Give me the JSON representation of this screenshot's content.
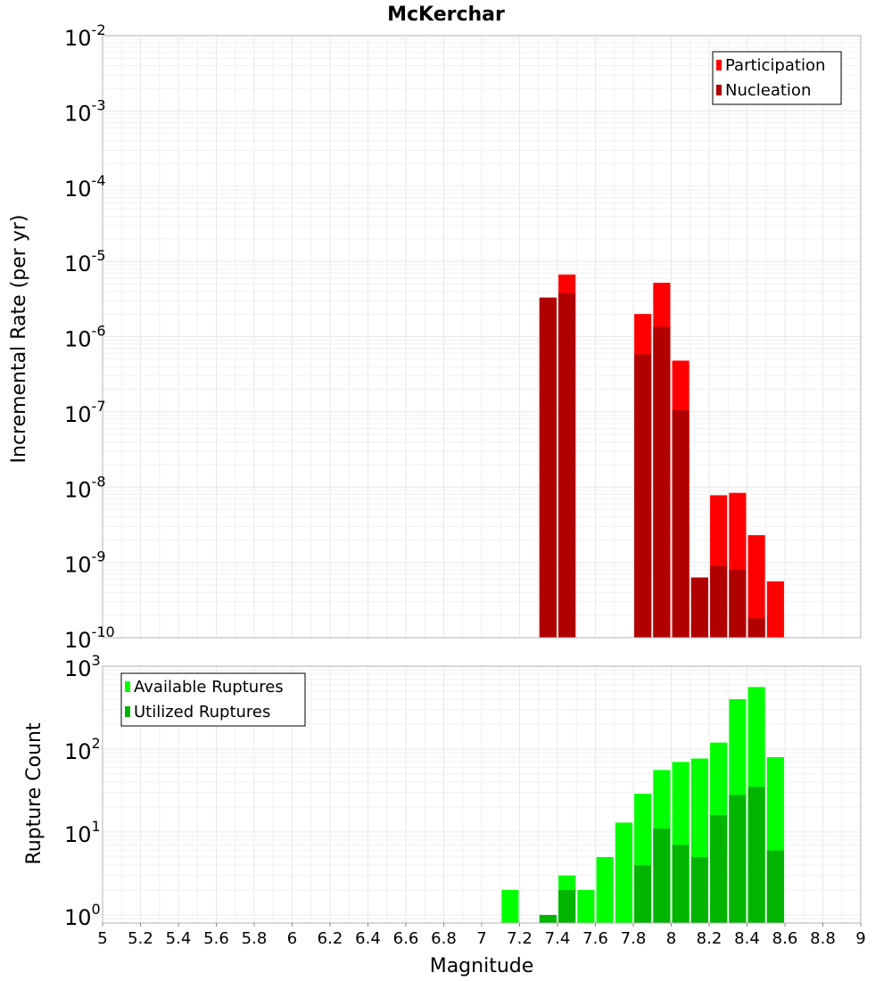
{
  "chart_data": [
    {
      "type": "bar",
      "title": "McKerchar",
      "ylabel": "Incremental Rate (per yr)",
      "yscale": "log",
      "ylim": [
        1e-10,
        0.01
      ],
      "y_tick_exponents": [
        "-2",
        "-3",
        "-4",
        "-5",
        "-6",
        "-7",
        "-8",
        "-9",
        "-10"
      ],
      "legend_position": "top-right",
      "series": [
        {
          "name": "Participation",
          "color": "#ff0000",
          "x": [
            7.35,
            7.45,
            7.85,
            7.95,
            8.05,
            8.15,
            8.25,
            8.35,
            8.45,
            8.55
          ],
          "values": [
            3.3e-06,
            6.7e-06,
            2e-06,
            5.2e-06,
            4.8e-07,
            6.3e-10,
            7.8e-09,
            8.4e-09,
            2.3e-09,
            5.6e-10
          ]
        },
        {
          "name": "Nucleation",
          "color": "#b00000",
          "x": [
            7.35,
            7.45,
            7.85,
            7.95,
            8.05,
            8.15,
            8.25,
            8.35,
            8.45
          ],
          "values": [
            3.3e-06,
            3.8e-06,
            5.8e-07,
            1.35e-06,
            1.05e-07,
            6.3e-10,
            9e-10,
            8e-10,
            1.8e-10
          ]
        }
      ]
    },
    {
      "type": "bar",
      "xlabel": "Magnitude",
      "ylabel": "Rupture Count",
      "yscale": "log",
      "ylim": [
        0.8,
        1000
      ],
      "y_tick_exponents": [
        "3",
        "2",
        "1",
        "0"
      ],
      "xlim": [
        5,
        9
      ],
      "x_ticks": [
        "5",
        "5.2",
        "5.4",
        "5.6",
        "5.8",
        "6",
        "6.2",
        "6.4",
        "6.6",
        "6.8",
        "7",
        "7.2",
        "7.4",
        "7.6",
        "7.8",
        "8",
        "8.2",
        "8.4",
        "8.6",
        "8.8",
        "9"
      ],
      "legend_position": "top-left",
      "series": [
        {
          "name": "Available Ruptures",
          "color": "#00ff00",
          "x": [
            7.15,
            7.35,
            7.45,
            7.55,
            7.65,
            7.75,
            7.85,
            7.95,
            8.05,
            8.15,
            8.25,
            8.35,
            8.45,
            8.55
          ],
          "values": [
            2,
            1,
            3,
            2,
            5,
            13,
            29,
            56,
            70,
            77,
            120,
            400,
            560,
            80
          ]
        },
        {
          "name": "Utilized Ruptures",
          "color": "#00b400",
          "x": [
            7.35,
            7.45,
            7.85,
            7.95,
            8.05,
            8.15,
            8.25,
            8.35,
            8.45,
            8.55
          ],
          "values": [
            1,
            2,
            4,
            11,
            7,
            5,
            16,
            28,
            35,
            6
          ]
        }
      ]
    }
  ]
}
